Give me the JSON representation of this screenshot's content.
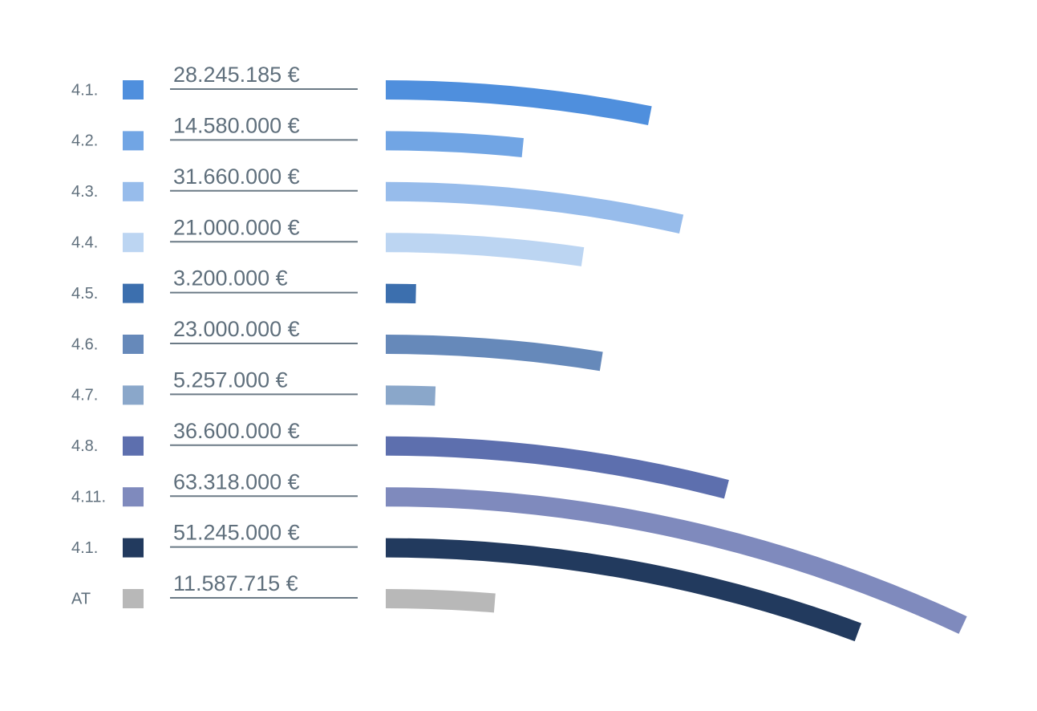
{
  "chart_data": {
    "type": "bar",
    "categories": [
      "4.1.",
      "4.2.",
      "4.3.",
      "4.4.",
      "4.5.",
      "4.6.",
      "4.7.",
      "4.8.",
      "4.11.",
      "4.1.",
      "AT"
    ],
    "values": [
      28245185,
      14580000,
      31660000,
      21000000,
      3200000,
      23000000,
      5257000,
      36600000,
      63318000,
      51245000,
      11587715
    ],
    "value_labels": [
      "28.245.185 €",
      "14.580.000 €",
      "31.660.000 €",
      "21.000.000 €",
      "3.200.000 €",
      "23.000.000 €",
      "5.257.000 €",
      "36.600.000 €",
      "63.318.000 €",
      "51.245.000 €",
      "11.587.715 €"
    ],
    "colors": [
      "#4f8fdd",
      "#71a5e4",
      "#97bceb",
      "#bcd5f2",
      "#3c6fae",
      "#6689ba",
      "#8aa7ca",
      "#5d6fae",
      "#7f8abd",
      "#223a5e",
      "#b8b8b8"
    ]
  }
}
